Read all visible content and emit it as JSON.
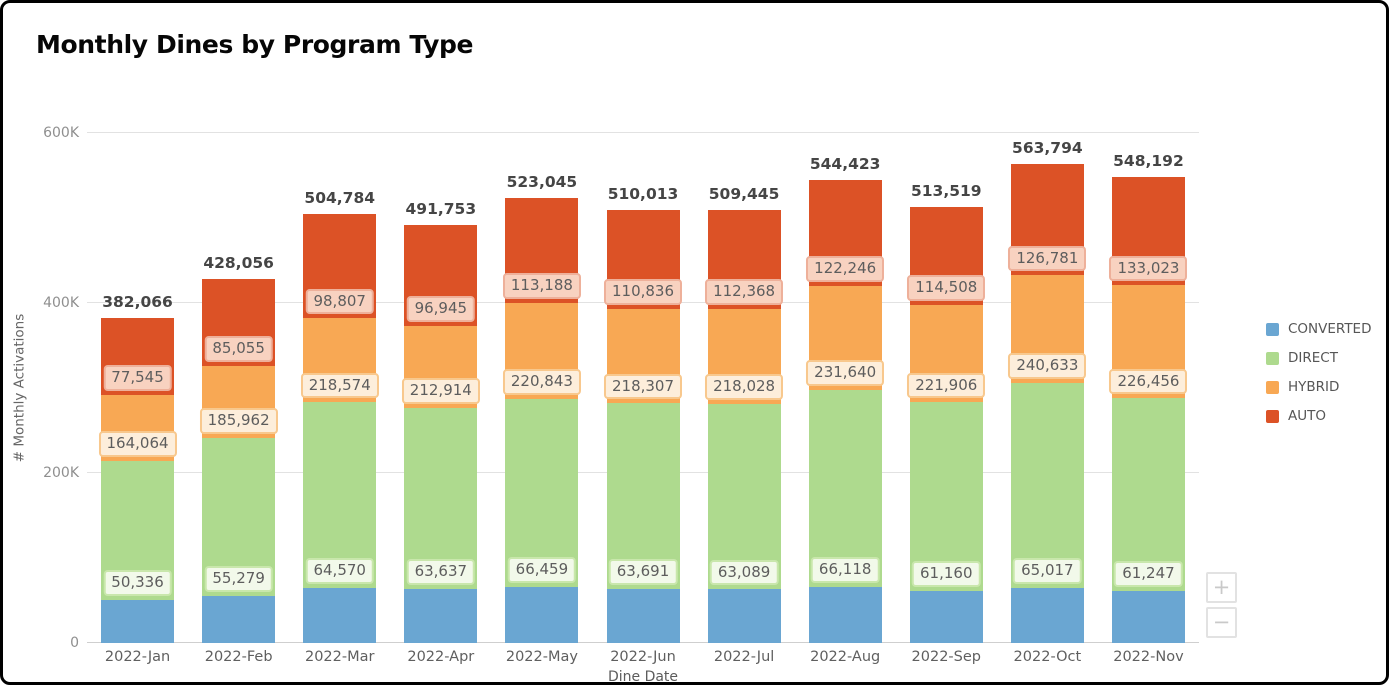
{
  "title": "Monthly Dines by Program Type",
  "zoom_controls": {
    "zoom_in": "+",
    "zoom_out": "−"
  },
  "chart_data": {
    "type": "bar",
    "stacked": true,
    "title": "Monthly Dines by Program Type",
    "xlabel": "Dine Date",
    "ylabel": "# Monthly Activations",
    "legend_position": "right",
    "grid": true,
    "ylim": [
      0,
      600000
    ],
    "y_ticks": [
      {
        "value": 0,
        "label": "0"
      },
      {
        "value": 200000,
        "label": "200K"
      },
      {
        "value": 400000,
        "label": "400K"
      },
      {
        "value": 600000,
        "label": "600K"
      }
    ],
    "categories": [
      "2022-Jan",
      "2022-Feb",
      "2022-Mar",
      "2022-Apr",
      "2022-May",
      "2022-Jun",
      "2022-Jul",
      "2022-Aug",
      "2022-Sep",
      "2022-Oct",
      "2022-Nov"
    ],
    "totals": [
      382066,
      428056,
      504784,
      491753,
      523045,
      510013,
      509445,
      544423,
      513519,
      563794,
      548192
    ],
    "series": [
      {
        "name": "CONVERTED",
        "color": "#6aa6d2",
        "labeled": true,
        "label_bg": "#f2f9ea",
        "label_border": "#c9e7ac",
        "values": [
          50336,
          55279,
          64570,
          63637,
          66459,
          63691,
          63089,
          66118,
          61160,
          65017,
          61247
        ]
      },
      {
        "name": "DIRECT",
        "color": "#aeda8e",
        "labeled": true,
        "label_bg": "#fdeedb",
        "label_border": "#f8c88d",
        "values": [
          164064,
          185962,
          218574,
          212914,
          220843,
          218307,
          218028,
          231640,
          221906,
          240633,
          226456
        ]
      },
      {
        "name": "HYBRID",
        "color": "#f8a854",
        "labeled": true,
        "label_bg": "#f8d2c0",
        "label_border": "#eeb09a",
        "values": [
          77545,
          85055,
          98807,
          96945,
          113188,
          110836,
          112368,
          122246,
          114508,
          126781,
          133023
        ]
      },
      {
        "name": "AUTO",
        "color": "#dc5226",
        "labeled": false,
        "values": [
          90121,
          101760,
          122833,
          118257,
          122555,
          117179,
          115960,
          124419,
          115945,
          131363,
          127466
        ]
      }
    ]
  }
}
